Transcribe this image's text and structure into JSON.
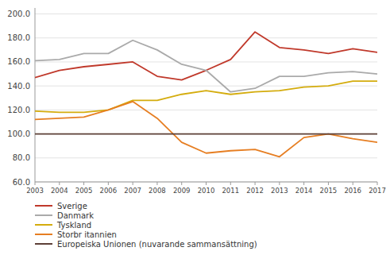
{
  "chart_data": {
    "type": "line",
    "x": [
      2003,
      2004,
      2005,
      2006,
      2007,
      2008,
      2009,
      2010,
      2011,
      2012,
      2013,
      2014,
      2015,
      2016,
      2017
    ],
    "series": [
      {
        "name": "Sverige",
        "color": "#C0392B",
        "values": [
          147,
          153,
          156,
          158,
          160,
          148,
          145,
          153,
          162,
          185,
          172,
          170,
          167,
          171,
          168
        ]
      },
      {
        "name": "Danmark",
        "color": "#AAAAAA",
        "values": [
          161,
          162,
          167,
          167,
          178,
          170,
          158,
          153,
          135,
          138,
          148,
          148,
          151,
          152,
          150
        ]
      },
      {
        "name": "Tyskland",
        "color": "#D4AC0D",
        "values": [
          119,
          118,
          118,
          120,
          128,
          128,
          133,
          136,
          133,
          135,
          136,
          139,
          140,
          144,
          144
        ]
      },
      {
        "name": "Storbr itannien",
        "color": "#E67E22",
        "values": [
          112,
          113,
          114,
          120,
          127,
          113,
          93,
          84,
          86,
          87,
          81,
          97,
          100,
          96,
          93
        ]
      },
      {
        "name": "Europeiska Unionen (nuvarande sammansättning)",
        "color": "#5D4037",
        "values": [
          100,
          100,
          100,
          100,
          100,
          100,
          100,
          100,
          100,
          100,
          100,
          100,
          100,
          100,
          100
        ]
      }
    ],
    "xlim": [
      2003,
      2017
    ],
    "xticks": [
      2003,
      2004,
      2005,
      2006,
      2007,
      2008,
      2009,
      2010,
      2011,
      2012,
      2013,
      2014,
      2015,
      2016,
      2017
    ],
    "ylim": [
      60,
      205
    ],
    "yticks": [
      {
        "value": 60,
        "label": "60.0"
      },
      {
        "value": 80,
        "label": "80.0"
      },
      {
        "value": 100,
        "label": "100.0"
      },
      {
        "value": 120,
        "label": "120.0"
      },
      {
        "value": 140,
        "label": "140.0"
      },
      {
        "value": 160,
        "label": "160.0"
      },
      {
        "value": 180,
        "label": "180.0"
      },
      {
        "value": 200,
        "label": "200.0"
      }
    ],
    "grid": true,
    "legend": "bottom"
  }
}
